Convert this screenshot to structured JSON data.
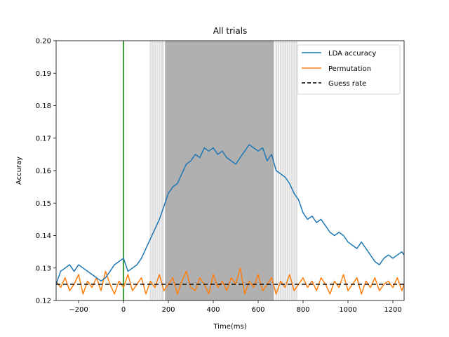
{
  "chart_data": {
    "type": "line",
    "title": "All trials",
    "xlabel": "Time(ms)",
    "ylabel": "Accuray",
    "xlim": [
      -300,
      1250
    ],
    "ylim": [
      0.12,
      0.2
    ],
    "xticks": [
      -200,
      0,
      200,
      400,
      600,
      800,
      1000,
      1200
    ],
    "yticks": [
      0.12,
      0.13,
      0.14,
      0.15,
      0.16,
      0.17,
      0.18,
      0.19,
      0.2
    ],
    "grid": false,
    "legend_position": "top-right",
    "onset_line": {
      "x": 0,
      "color": "#008000"
    },
    "guess_rate": {
      "name": "Guess rate",
      "y": 0.125,
      "color": "#000000",
      "style": "dashed"
    },
    "significant_band": {
      "x_start": 185,
      "x_end": 670,
      "color": "#b0b0b0"
    },
    "scattered_significance_x": [
      120,
      130,
      140,
      150,
      160,
      170,
      175,
      680,
      690,
      700,
      710,
      720,
      730,
      740,
      750,
      760,
      770
    ],
    "series": [
      {
        "name": "LDA accuracy",
        "color": "#1f77b4",
        "x": [
          -300,
          -280,
          -260,
          -240,
          -220,
          -200,
          -180,
          -160,
          -140,
          -120,
          -100,
          -80,
          -60,
          -40,
          -20,
          0,
          20,
          40,
          60,
          80,
          100,
          120,
          140,
          160,
          180,
          200,
          220,
          240,
          260,
          280,
          300,
          320,
          340,
          360,
          380,
          400,
          420,
          440,
          460,
          480,
          500,
          520,
          540,
          560,
          580,
          600,
          620,
          640,
          660,
          680,
          700,
          720,
          740,
          760,
          780,
          800,
          820,
          840,
          860,
          880,
          900,
          920,
          940,
          960,
          980,
          1000,
          1020,
          1040,
          1060,
          1080,
          1100,
          1120,
          1140,
          1160,
          1180,
          1200,
          1220,
          1240,
          1250
        ],
        "y": [
          0.125,
          0.129,
          0.13,
          0.131,
          0.129,
          0.131,
          0.13,
          0.129,
          0.128,
          0.127,
          0.126,
          0.127,
          0.129,
          0.131,
          0.132,
          0.133,
          0.129,
          0.13,
          0.131,
          0.133,
          0.136,
          0.139,
          0.142,
          0.145,
          0.149,
          0.153,
          0.155,
          0.156,
          0.159,
          0.162,
          0.163,
          0.165,
          0.164,
          0.167,
          0.166,
          0.167,
          0.165,
          0.166,
          0.164,
          0.163,
          0.162,
          0.164,
          0.166,
          0.168,
          0.167,
          0.166,
          0.167,
          0.163,
          0.165,
          0.16,
          0.159,
          0.158,
          0.156,
          0.153,
          0.151,
          0.147,
          0.145,
          0.146,
          0.144,
          0.145,
          0.143,
          0.141,
          0.14,
          0.141,
          0.14,
          0.138,
          0.137,
          0.136,
          0.138,
          0.136,
          0.134,
          0.132,
          0.131,
          0.133,
          0.134,
          0.133,
          0.134,
          0.135,
          0.134
        ]
      },
      {
        "name": "Permutation",
        "color": "#ff7f0e",
        "x": [
          -300,
          -280,
          -260,
          -240,
          -220,
          -200,
          -180,
          -160,
          -140,
          -120,
          -100,
          -80,
          -60,
          -40,
          -20,
          0,
          20,
          40,
          60,
          80,
          100,
          120,
          140,
          160,
          180,
          200,
          220,
          240,
          260,
          280,
          300,
          320,
          340,
          360,
          380,
          400,
          420,
          440,
          460,
          480,
          500,
          520,
          540,
          560,
          580,
          600,
          620,
          640,
          660,
          680,
          700,
          720,
          740,
          760,
          780,
          800,
          820,
          840,
          860,
          880,
          900,
          920,
          940,
          960,
          980,
          1000,
          1020,
          1040,
          1060,
          1080,
          1100,
          1120,
          1140,
          1160,
          1180,
          1200,
          1220,
          1240,
          1250
        ],
        "y": [
          0.126,
          0.124,
          0.127,
          0.123,
          0.125,
          0.128,
          0.122,
          0.126,
          0.124,
          0.127,
          0.123,
          0.129,
          0.125,
          0.122,
          0.126,
          0.124,
          0.128,
          0.123,
          0.125,
          0.127,
          0.122,
          0.126,
          0.124,
          0.128,
          0.123,
          0.125,
          0.127,
          0.122,
          0.126,
          0.129,
          0.124,
          0.123,
          0.127,
          0.125,
          0.122,
          0.128,
          0.124,
          0.126,
          0.123,
          0.127,
          0.125,
          0.13,
          0.122,
          0.126,
          0.124,
          0.128,
          0.123,
          0.125,
          0.127,
          0.122,
          0.126,
          0.124,
          0.128,
          0.123,
          0.125,
          0.127,
          0.124,
          0.126,
          0.123,
          0.127,
          0.125,
          0.122,
          0.126,
          0.124,
          0.128,
          0.123,
          0.125,
          0.127,
          0.122,
          0.126,
          0.124,
          0.127,
          0.123,
          0.125,
          0.126,
          0.124,
          0.127,
          0.123,
          0.125
        ]
      }
    ]
  }
}
